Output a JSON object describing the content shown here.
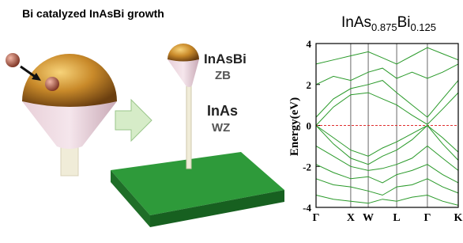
{
  "illustration": {
    "heading": "Bi catalyzed InAsBi growth",
    "top_segment": "InAsBi",
    "top_phase": "ZB",
    "bottom_segment": "InAs",
    "bottom_phase": "WZ"
  },
  "chart_data": {
    "type": "line",
    "title": [
      "InAs",
      "0.875",
      "Bi",
      "0.125"
    ],
    "y_label": "Energy(eV)",
    "x": [
      0,
      0.122,
      0.244,
      0.367,
      0.467,
      0.567,
      0.675,
      0.783,
      0.89,
      1.0
    ],
    "xlim": [
      0,
      1.0
    ],
    "xticks": [
      {
        "value": 0,
        "label": "Γ"
      },
      {
        "value": 0.244,
        "label": "X"
      },
      {
        "value": 0.367,
        "label": "W"
      },
      {
        "value": 0.567,
        "label": "L"
      },
      {
        "value": 0.783,
        "label": "Γ"
      },
      {
        "value": 1.0,
        "label": "K"
      }
    ],
    "ylim": [
      -4,
      4
    ],
    "yticks": [
      -4,
      -2,
      0,
      2,
      4
    ],
    "grid": true,
    "reference_line": 0,
    "reference_color": "#e03030",
    "series": [
      {
        "color": "#2a9a2a",
        "values": [
          0.0,
          0.9,
          1.5,
          1.6,
          1.3,
          1.0,
          0.5,
          0.05,
          0.8,
          1.6
        ]
      },
      {
        "color": "#2a9a2a",
        "values": [
          0.4,
          1.3,
          1.8,
          2.0,
          2.2,
          1.6,
          1.0,
          0.4,
          1.3,
          2.2
        ]
      },
      {
        "color": "#2a9a2a",
        "values": [
          2.0,
          2.4,
          2.2,
          2.6,
          2.8,
          2.3,
          2.6,
          2.3,
          2.6,
          3.0
        ]
      },
      {
        "color": "#2a9a2a",
        "values": [
          3.0,
          3.2,
          3.4,
          3.6,
          3.3,
          3.0,
          3.4,
          3.8,
          3.5,
          3.2
        ]
      },
      {
        "color": "#2a9a2a",
        "values": [
          0.0,
          -0.6,
          -1.2,
          -1.5,
          -1.1,
          -0.8,
          -0.4,
          0.0,
          -0.6,
          -1.3
        ]
      },
      {
        "color": "#2a9a2a",
        "values": [
          0.0,
          -0.9,
          -1.6,
          -1.9,
          -1.5,
          -1.2,
          -0.7,
          0.0,
          -0.9,
          -1.7
        ]
      },
      {
        "color": "#2a9a2a",
        "values": [
          -1.0,
          -1.5,
          -2.0,
          -2.2,
          -2.1,
          -1.9,
          -1.6,
          -1.0,
          -1.6,
          -2.2
        ]
      },
      {
        "color": "#2a9a2a",
        "values": [
          -1.9,
          -2.3,
          -2.6,
          -2.5,
          -2.8,
          -2.4,
          -2.2,
          -1.9,
          -2.4,
          -2.8
        ]
      },
      {
        "color": "#2a9a2a",
        "values": [
          -2.6,
          -2.9,
          -3.0,
          -3.2,
          -3.4,
          -3.0,
          -2.9,
          -2.6,
          -3.0,
          -3.3
        ]
      },
      {
        "color": "#2a9a2a",
        "values": [
          -3.4,
          -3.6,
          -3.7,
          -3.8,
          -3.6,
          -3.7,
          -3.5,
          -3.4,
          -3.7,
          -3.9
        ]
      }
    ]
  }
}
